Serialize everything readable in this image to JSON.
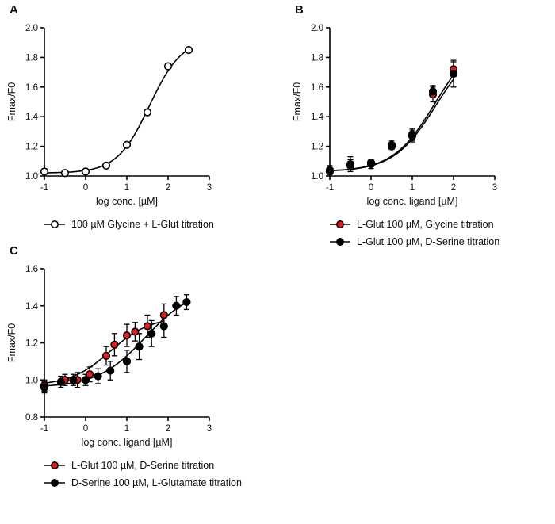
{
  "figure": {
    "background": "#ffffff",
    "accent_red": "#e41a1c",
    "line_color": "#000000"
  },
  "chart_data": [
    {
      "panel": "A",
      "type": "scatter",
      "title": "",
      "xlabel": "log conc. [µM]",
      "ylabel": "Fmax/F0",
      "xlim": [
        -1,
        3
      ],
      "ylim": [
        1.0,
        2.0
      ],
      "xticks": [
        -1,
        0,
        1,
        2,
        3
      ],
      "yticks": [
        1.0,
        1.2,
        1.4,
        1.6,
        1.8,
        2.0
      ],
      "grid": false,
      "legend_position": "bottom",
      "series": [
        {
          "name": "100 µM Glycine + L-Glut titration",
          "marker": "open-circle",
          "color": "#000000",
          "marker_fill": "#ffffff",
          "x": [
            -1,
            -0.5,
            0,
            0.5,
            1,
            1.5,
            2,
            2.5
          ],
          "y": [
            1.03,
            1.02,
            1.03,
            1.07,
            1.21,
            1.43,
            1.74,
            1.85
          ],
          "fit": {
            "bottom": 1.02,
            "top": 1.93,
            "logec50": 1.55,
            "hill": 1.1
          }
        }
      ]
    },
    {
      "panel": "B",
      "type": "scatter",
      "title": "",
      "xlabel": "log conc. ligand [µM]",
      "ylabel": "Fmax/F0",
      "xlim": [
        -1,
        3
      ],
      "ylim": [
        1.0,
        2.0
      ],
      "xticks": [
        -1,
        0,
        1,
        2,
        3
      ],
      "yticks": [
        1.0,
        1.2,
        1.4,
        1.6,
        1.8,
        2.0
      ],
      "grid": false,
      "legend_position": "bottom",
      "series": [
        {
          "name": "L-Glut 100 µM, Glycine titration",
          "marker": "filled-circle",
          "color": "#000000",
          "marker_fill": "#e41a1c",
          "x": [
            -1,
            -0.5,
            0,
            0.5,
            1,
            1.5,
            2
          ],
          "y": [
            1.03,
            1.07,
            1.09,
            1.2,
            1.27,
            1.55,
            1.72
          ],
          "err": [
            0.02,
            0.04,
            0.02,
            0.02,
            0.04,
            0.05,
            0.05
          ],
          "fit": {
            "bottom": 1.03,
            "top": 1.95,
            "logec50": 1.55,
            "hill": 0.85
          }
        },
        {
          "name": "L-Glut 100 µM, D-Serine titration",
          "marker": "filled-circle",
          "color": "#000000",
          "marker_fill": "#000000",
          "x": [
            -1,
            -0.5,
            0,
            0.5,
            1,
            1.5,
            2
          ],
          "y": [
            1.04,
            1.08,
            1.08,
            1.21,
            1.28,
            1.57,
            1.69
          ],
          "err": [
            0.03,
            0.05,
            0.03,
            0.03,
            0.04,
            0.04,
            0.09
          ],
          "fit": {
            "bottom": 1.03,
            "top": 1.92,
            "logec50": 1.57,
            "hill": 0.85
          }
        }
      ]
    },
    {
      "panel": "C",
      "type": "scatter",
      "title": "",
      "xlabel": "log conc. ligand [µM]",
      "ylabel": "Fmax/F0",
      "xlim": [
        -1,
        3
      ],
      "ylim": [
        0.8,
        1.6
      ],
      "xticks": [
        -1,
        0,
        1,
        2,
        3
      ],
      "yticks": [
        0.8,
        1.0,
        1.2,
        1.4,
        1.6
      ],
      "grid": false,
      "legend_position": "bottom",
      "series": [
        {
          "name": "L-Glut 100 µM, D-Serine titration",
          "marker": "filled-circle",
          "color": "#000000",
          "marker_fill": "#e41a1c",
          "x": [
            -1,
            -0.5,
            -0.2,
            0.1,
            0.5,
            0.7,
            1,
            1.2,
            1.5,
            1.9
          ],
          "y": [
            0.97,
            1.0,
            1.0,
            1.03,
            1.13,
            1.19,
            1.24,
            1.26,
            1.29,
            1.35
          ],
          "err": [
            0.03,
            0.03,
            0.04,
            0.04,
            0.05,
            0.06,
            0.06,
            0.05,
            0.06,
            0.06
          ],
          "fit": {
            "bottom": 0.97,
            "top": 1.34,
            "logec50": 0.6,
            "hill": 0.9
          }
        },
        {
          "name": "D-Serine 100 µM, L-Glutamate titration",
          "marker": "filled-circle",
          "color": "#000000",
          "marker_fill": "#000000",
          "x": [
            -1,
            -0.6,
            -0.3,
            0,
            0.3,
            0.6,
            1,
            1.3,
            1.6,
            1.9,
            2.2,
            2.45
          ],
          "y": [
            0.96,
            0.99,
            1.0,
            1.0,
            1.02,
            1.05,
            1.1,
            1.18,
            1.25,
            1.29,
            1.4,
            1.42
          ],
          "err": [
            0.03,
            0.03,
            0.03,
            0.03,
            0.04,
            0.05,
            0.06,
            0.07,
            0.07,
            0.06,
            0.05,
            0.04
          ],
          "fit": {
            "bottom": 0.96,
            "top": 1.5,
            "logec50": 1.45,
            "hill": 0.75
          }
        }
      ]
    }
  ]
}
